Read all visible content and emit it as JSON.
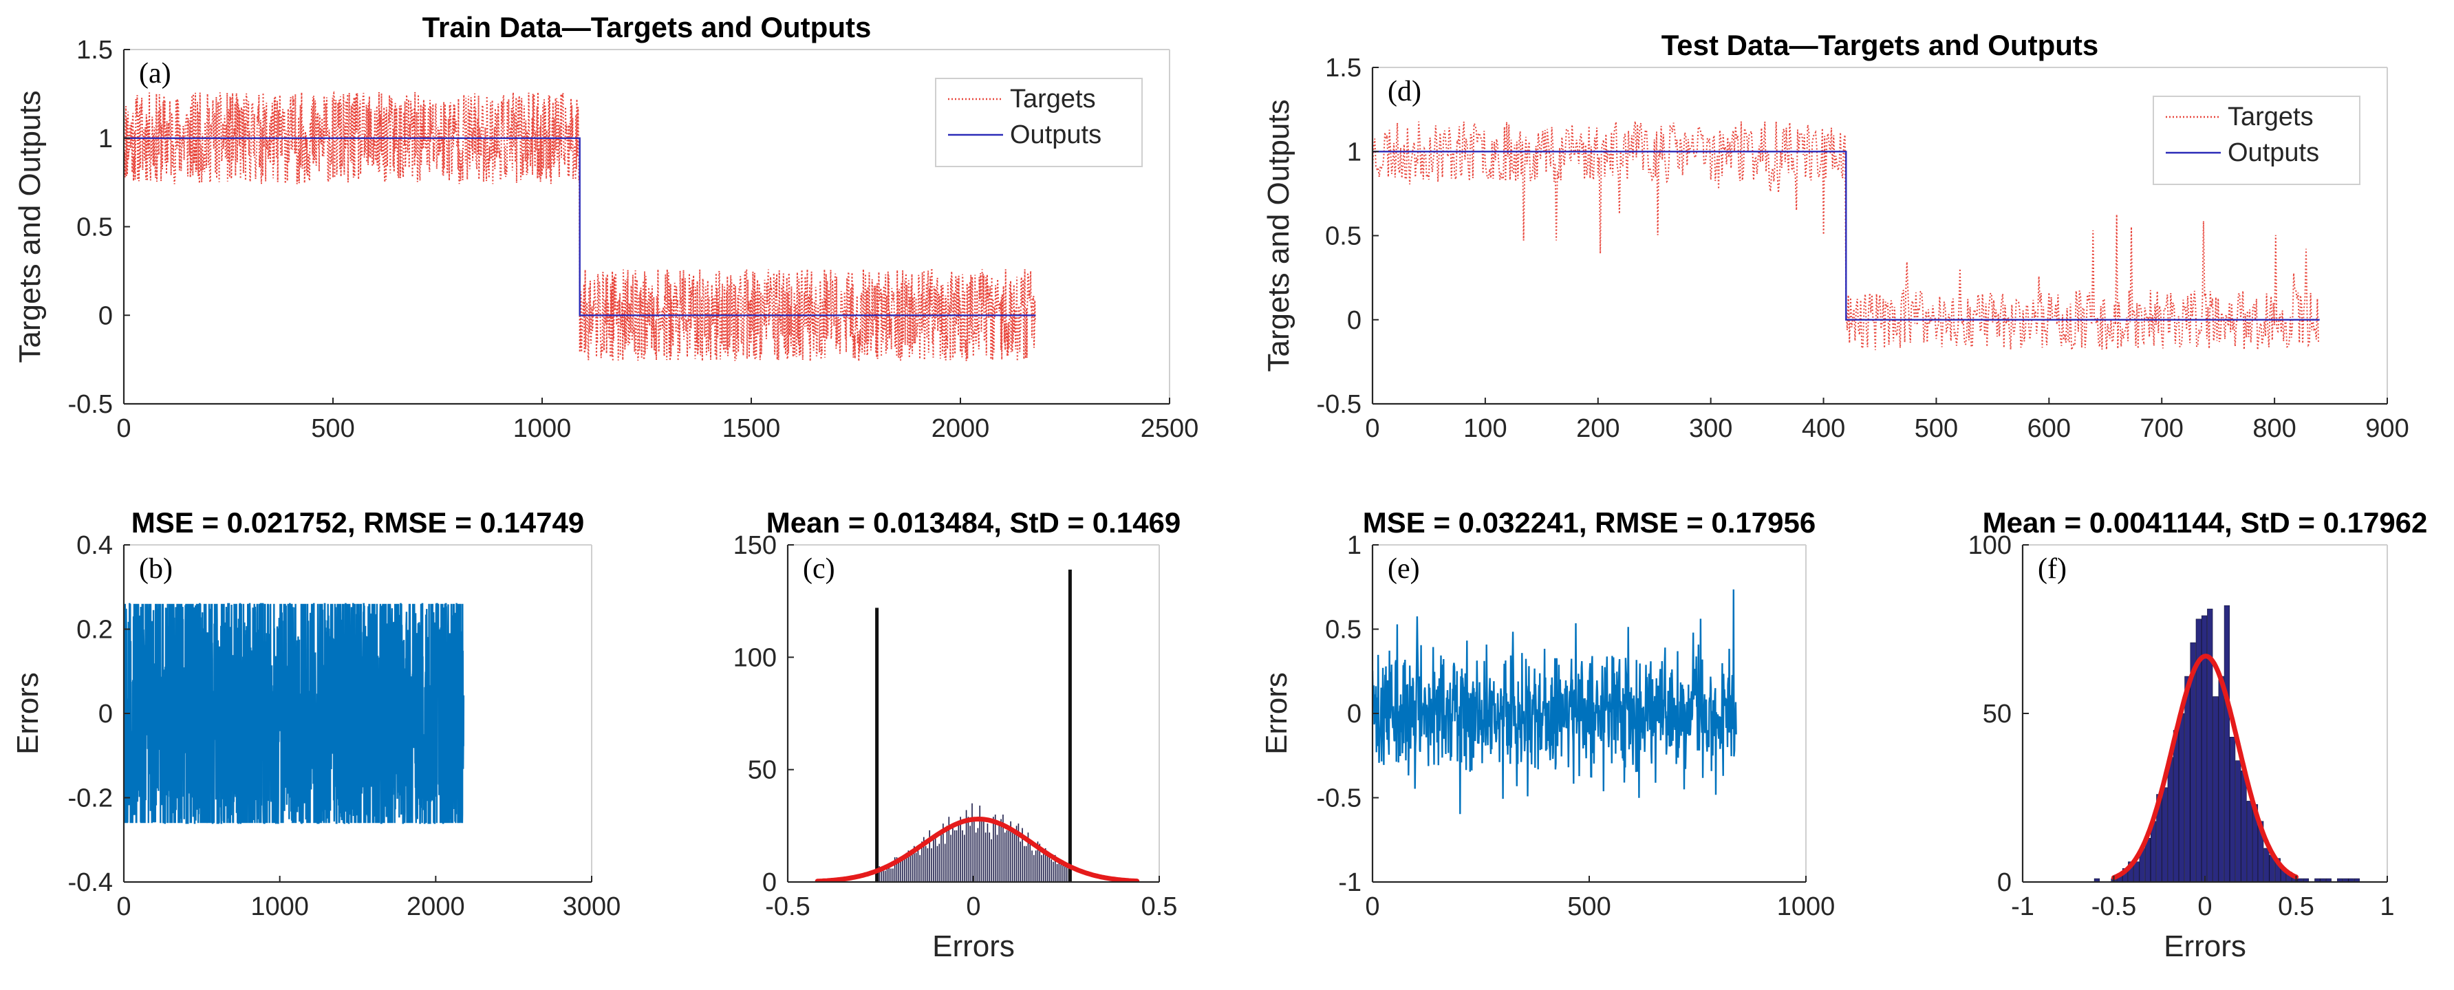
{
  "figure": {
    "background": "#ffffff",
    "axis_color": "#262626",
    "frame_color": "#cfcfcf"
  },
  "chart_data": [
    {
      "id": "a",
      "panel_tag": "(a)",
      "type": "line",
      "title": "Train Data—Targets and Outputs",
      "xlabel": "",
      "ylabel": "Targets and Outputs",
      "xlim": [
        0,
        2500
      ],
      "ylim": [
        -0.5,
        1.5
      ],
      "xticks": [
        0,
        500,
        1000,
        1500,
        2000,
        2500
      ],
      "xtick_labels": [
        "0",
        "500",
        "1000",
        "1500",
        "2000",
        "2500"
      ],
      "yticks": [
        -0.5,
        0,
        0.5,
        1,
        1.5
      ],
      "ytick_labels": [
        "-0.5",
        "0",
        "0.5",
        "1",
        "1.5"
      ],
      "legend": {
        "position": "top-right",
        "entries": [
          "Targets",
          "Outputs"
        ]
      },
      "series": [
        {
          "name": "Targets",
          "color": "#e8443a",
          "style": "dotted",
          "generator": {
            "kind": "noisy-step",
            "n": 2180,
            "split": 1090,
            "high": 1,
            "low": 0,
            "amp": 0.26,
            "seed": 11
          }
        },
        {
          "name": "Outputs",
          "color": "#2b2bb8",
          "style": "solid",
          "x": [
            0,
            1090,
            1090,
            2180
          ],
          "y": [
            1,
            1,
            0,
            0
          ]
        }
      ]
    },
    {
      "id": "d",
      "panel_tag": "(d)",
      "type": "line",
      "title": "Test Data—Targets and Outputs",
      "xlabel": "",
      "ylabel": "Targets and Outputs",
      "xlim": [
        0,
        900
      ],
      "ylim": [
        -0.5,
        1.5
      ],
      "xticks": [
        0,
        100,
        200,
        300,
        400,
        500,
        600,
        700,
        800,
        900
      ],
      "xtick_labels": [
        "0",
        "100",
        "200",
        "300",
        "400",
        "500",
        "600",
        "700",
        "800",
        "900"
      ],
      "yticks": [
        -0.5,
        0,
        0.5,
        1,
        1.5
      ],
      "ytick_labels": [
        "-0.5",
        "0",
        "0.5",
        "1",
        "1.5"
      ],
      "legend": {
        "position": "top-right",
        "entries": [
          "Targets",
          "Outputs"
        ]
      },
      "series": [
        {
          "name": "Targets",
          "color": "#e8443a",
          "style": "dotted",
          "generator": {
            "kind": "noisy-step",
            "n": 840,
            "split": 420,
            "high": 1,
            "low": 0,
            "amp": 0.18,
            "spike": 0.45,
            "seed": 23
          }
        },
        {
          "name": "Outputs",
          "color": "#2b2bb8",
          "style": "solid",
          "x": [
            0,
            420,
            420,
            840
          ],
          "y": [
            1,
            1,
            0,
            0
          ]
        }
      ]
    },
    {
      "id": "b",
      "panel_tag": "(b)",
      "type": "line",
      "title": "MSE = 0.021752, RMSE = 0.14749",
      "xlabel": "",
      "ylabel": "Errors",
      "xlim": [
        0,
        3000
      ],
      "ylim": [
        -0.4,
        0.4
      ],
      "xticks": [
        0,
        1000,
        2000,
        3000
      ],
      "xtick_labels": [
        "0",
        "1000",
        "2000",
        "3000"
      ],
      "yticks": [
        -0.4,
        -0.2,
        0,
        0.2,
        0.4
      ],
      "ytick_labels": [
        "-0.4",
        "-0.2",
        "0",
        "0.2",
        "0.4"
      ],
      "series": [
        {
          "name": "Errors",
          "color": "#0072bd",
          "style": "solid",
          "generator": {
            "kind": "uniform-noise",
            "n": 2180,
            "min": -0.26,
            "max": 0.26,
            "seed": 5
          }
        }
      ]
    },
    {
      "id": "c",
      "panel_tag": "(c)",
      "type": "histogram",
      "title": "Mean = 0.013484, StD = 0.1469",
      "xlabel": "Errors",
      "ylabel": "",
      "xlim": [
        -0.5,
        0.5
      ],
      "ylim": [
        0,
        150
      ],
      "xticks": [
        -0.5,
        0,
        0.5
      ],
      "xtick_labels": [
        "-0.5",
        "0",
        "0.5"
      ],
      "yticks": [
        0,
        50,
        100,
        150
      ],
      "ytick_labels": [
        "0",
        "50",
        "100",
        "150"
      ],
      "bars": {
        "color": "#1e1e4a",
        "start": -0.26,
        "end": 0.26,
        "count": 100,
        "seed": 7,
        "edge_bars": [
          {
            "x": -0.26,
            "value": 122
          },
          {
            "x": 0.26,
            "value": 139
          }
        ]
      },
      "fit": {
        "color": "#e51b1b",
        "mean": 0.013484,
        "std": 0.1469,
        "peak": 28,
        "xmin": -0.42,
        "xmax": 0.44
      }
    },
    {
      "id": "e",
      "panel_tag": "(e)",
      "type": "line",
      "title": "MSE = 0.032241, RMSE = 0.17956",
      "xlabel": "",
      "ylabel": "Errors",
      "xlim": [
        0,
        1000
      ],
      "ylim": [
        -1,
        1
      ],
      "xticks": [
        0,
        500,
        1000
      ],
      "xtick_labels": [
        "0",
        "500",
        "1000"
      ],
      "yticks": [
        -1,
        -0.5,
        0,
        0.5,
        1
      ],
      "ytick_labels": [
        "-1",
        "-0.5",
        "0",
        "0.5",
        "1"
      ],
      "series": [
        {
          "name": "Errors",
          "color": "#0072bd",
          "style": "solid",
          "generator": {
            "kind": "gauss-noise",
            "n": 840,
            "sigma": 0.18,
            "min": -0.7,
            "max": 0.85,
            "seed": 31
          }
        }
      ]
    },
    {
      "id": "f",
      "panel_tag": "(f)",
      "type": "histogram",
      "title": "Mean = 0.0041144, StD = 0.17962",
      "xlabel": "Errors",
      "ylabel": "",
      "xlim": [
        -1,
        1
      ],
      "ylim": [
        0,
        100
      ],
      "xticks": [
        -1,
        -0.5,
        0,
        0.5,
        1
      ],
      "xtick_labels": [
        "-1",
        "-0.5",
        "0",
        "0.5",
        "1"
      ],
      "yticks": [
        0,
        50,
        100
      ],
      "ytick_labels": [
        "0",
        "50",
        "100"
      ],
      "bars": {
        "color": "#2a2a80",
        "start": -0.7,
        "end": 0.85,
        "count": 50,
        "seed": 3,
        "gauss": true
      },
      "fit": {
        "color": "#e51b1b",
        "mean": 0.0041144,
        "std": 0.17962,
        "peak": 67,
        "xmin": -0.5,
        "xmax": 0.5
      }
    }
  ]
}
